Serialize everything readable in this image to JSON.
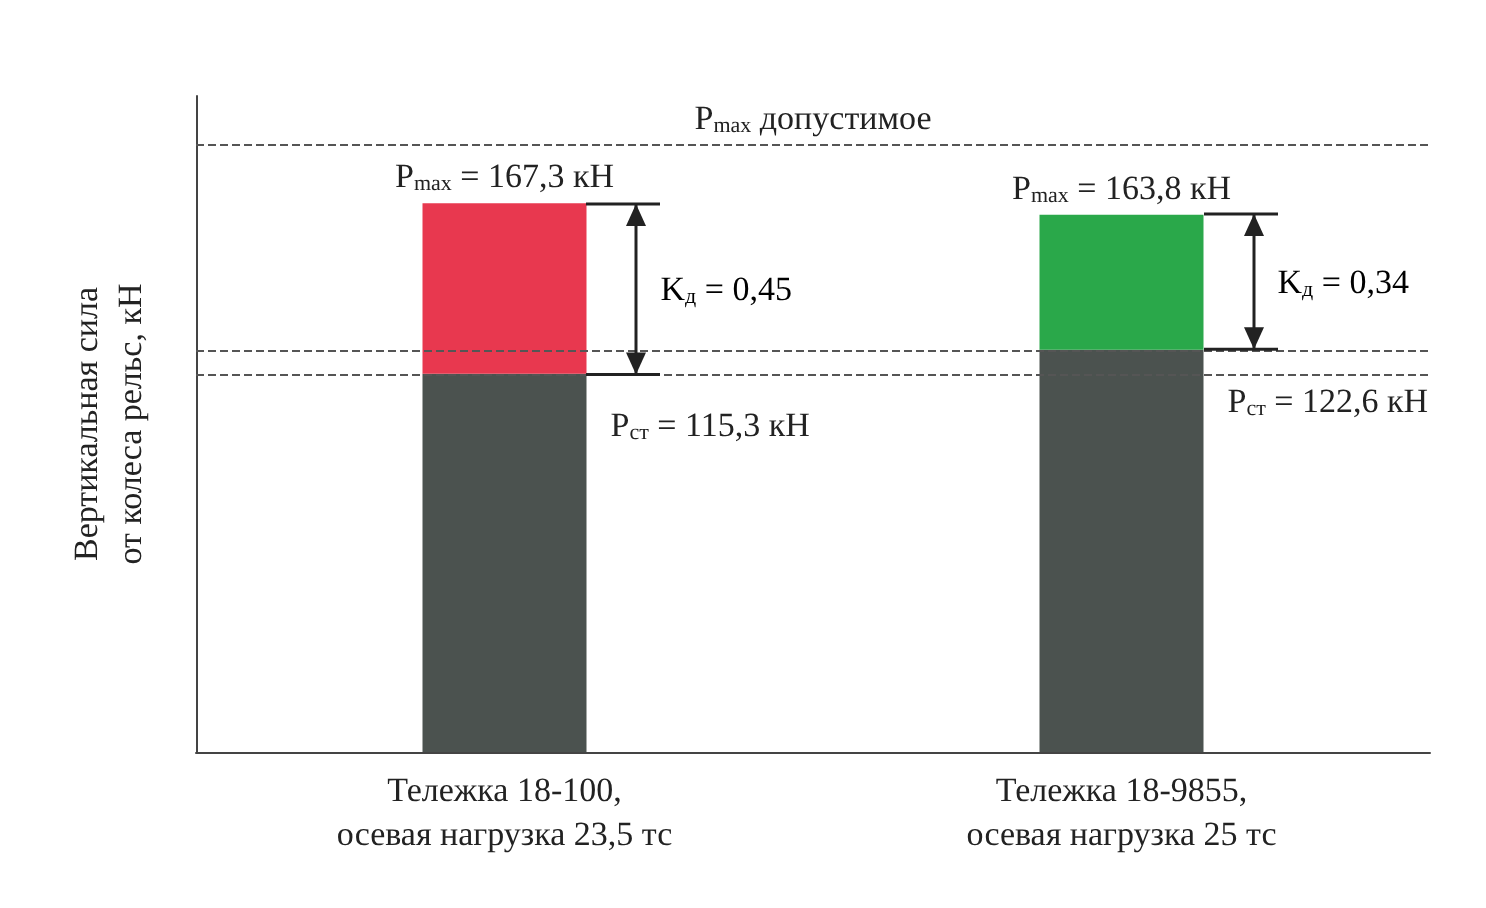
{
  "chart_data": {
    "type": "bar",
    "stacked": true,
    "ylabel": "Вертикальная сила\nот колеса рельс, кН",
    "tick_labels": "x",
    "categories": [
      "Тележка 18-100,\nосевая нагрузка 23,5 тс",
      "Тележка 18-9855,\nосевая нагрузка 25 тс"
    ],
    "series": [
      {
        "color": "#4b524f",
        "values": [
          115.3,
          122.6
        ],
        "value_labels": [
          "P$_{ст}$ = 115,3 кН",
          "P$_{ст}$ = 122,6 кН"
        ]
      },
      {
        "colors": [
          "#e8384f",
          "#2aa84a"
        ],
        "values": [
          52.0,
          41.2
        ]
      }
    ],
    "totals": [
      "P$_{max}$ = 167,3 кН",
      "P$_{max}$ = 163,8 кН"
    ],
    "annotations": [
      "K$_{д}$ = 0,45",
      "K$_{д}$ = 0,34"
    ],
    "ylim": [
      0,
      200
    ],
    "ref_lines": [
      {
        "axis": "y",
        "value": 185,
        "label": "P$_{max}$ допустимое",
        "color": "#555555",
        "line_style": "dashed"
      },
      {
        "axis": "y",
        "value": 122.6,
        "color": "#555555",
        "line_style": "dashed"
      },
      {
        "axis": "y",
        "value": 115.3,
        "color": "#555555",
        "line_style": "dashed"
      }
    ],
    "grid": false
  }
}
